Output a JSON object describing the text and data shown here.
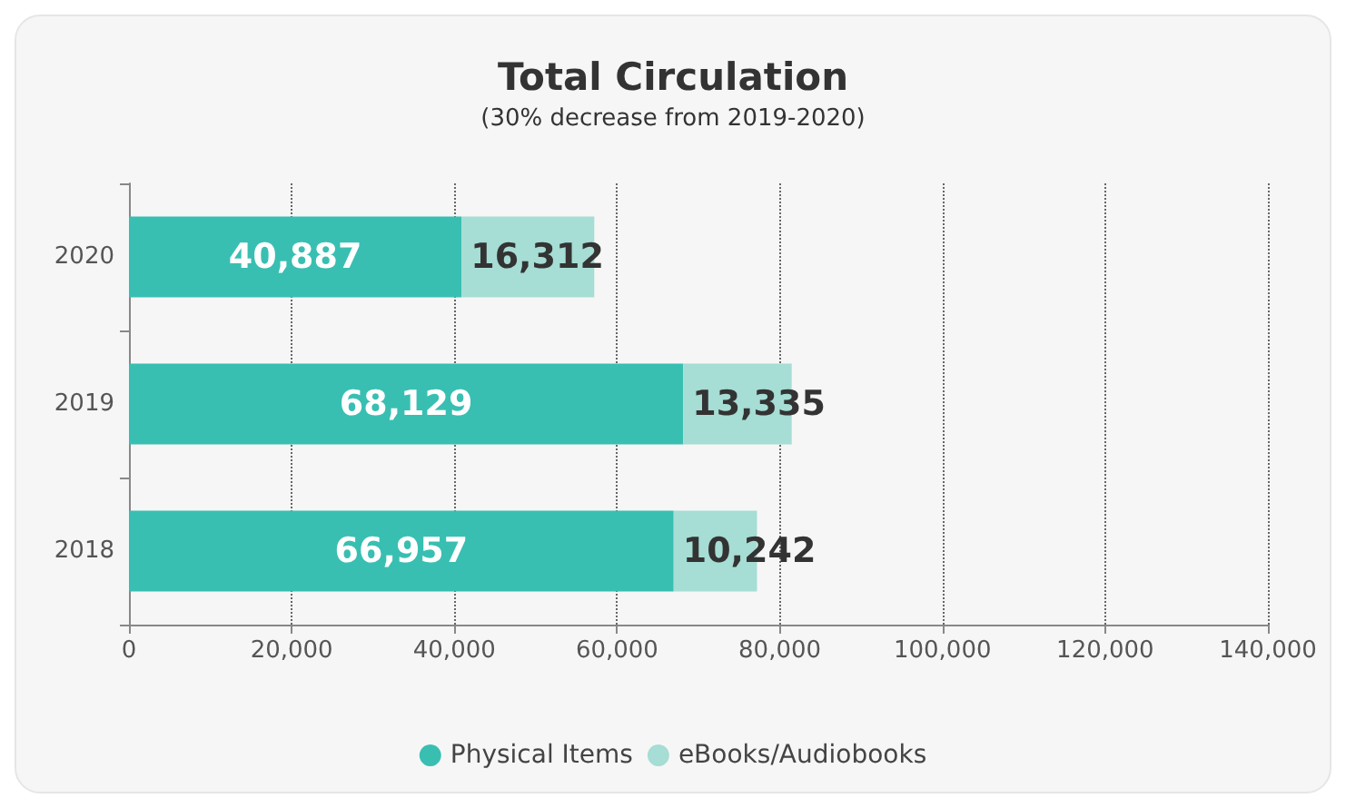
{
  "chart_data": {
    "type": "bar",
    "title": "Total Circulation",
    "subtitle": "(30% decrease from 2019-2020)",
    "orientation": "horizontal",
    "stacked": true,
    "categories": [
      "2020",
      "2019",
      "2018"
    ],
    "series": [
      {
        "name": "Physical Items",
        "color": "#38bfb2",
        "values": [
          40887,
          68129,
          66957
        ],
        "value_labels": [
          "40,887",
          "68,129",
          "66,957"
        ]
      },
      {
        "name": "eBooks/Audiobooks",
        "color": "#a6ddd4",
        "values": [
          16312,
          13335,
          10242
        ],
        "value_labels": [
          "16,312",
          "13,335",
          "10,242"
        ]
      }
    ],
    "xlim": [
      0,
      140000
    ],
    "xticks": [
      {
        "value": 0,
        "label": "0"
      },
      {
        "value": 20000,
        "label": "20,000"
      },
      {
        "value": 40000,
        "label": "40,000"
      },
      {
        "value": 60000,
        "label": "60,000"
      },
      {
        "value": 80000,
        "label": "80,000"
      },
      {
        "value": 100000,
        "label": "100,000"
      },
      {
        "value": 120000,
        "label": "120,000"
      },
      {
        "value": 140000,
        "label": "140,000"
      }
    ],
    "grid": "x",
    "legend": "bottom"
  }
}
